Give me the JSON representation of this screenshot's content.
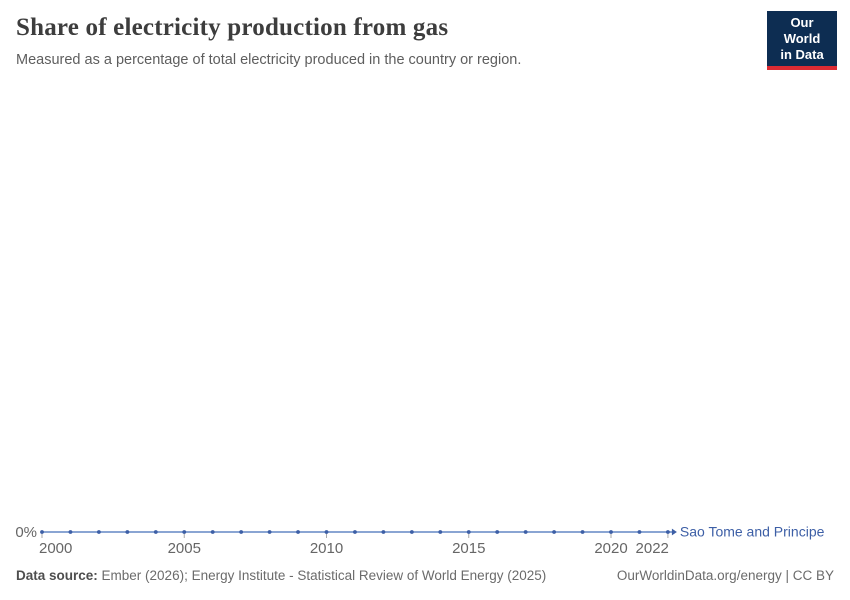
{
  "header": {
    "title": "Share of electricity production from gas",
    "subtitle": "Measured as a percentage of total electricity produced in the country or region.",
    "logo": {
      "line1": "Our World",
      "line2": "in Data",
      "background_color": "#0d2d52",
      "accent_color": "#dc2b33"
    }
  },
  "chart_data": {
    "type": "line",
    "title": "Share of electricity production from gas",
    "x": [
      2000,
      2001,
      2002,
      2003,
      2004,
      2005,
      2006,
      2007,
      2008,
      2009,
      2010,
      2011,
      2012,
      2013,
      2014,
      2015,
      2016,
      2017,
      2018,
      2019,
      2020,
      2021,
      2022
    ],
    "series": [
      {
        "name": "Sao Tome and Principe",
        "values": [
          0,
          0,
          0,
          0,
          0,
          0,
          0,
          0,
          0,
          0,
          0,
          0,
          0,
          0,
          0,
          0,
          0,
          0,
          0,
          0,
          0,
          0,
          0
        ],
        "color": "#3d5fa6",
        "line_color": "#8aa5d3"
      }
    ],
    "x_ticks": [
      2000,
      2005,
      2010,
      2015,
      2020,
      2022
    ],
    "x_tick_labels": [
      "2000",
      "2005",
      "2010",
      "2015",
      "2020",
      "2022"
    ],
    "y_ticks": [
      "0%"
    ],
    "ylim": [
      0,
      0
    ],
    "unit": "%",
    "grid": false,
    "legend_position": "end-of-line-label",
    "tick_color": "#666666"
  },
  "footer": {
    "source_label": "Data source:",
    "source_text": " Ember (2026); Energy Institute - Statistical Review of World Energy (2025)",
    "credit": "OurWorldinData.org/energy | CC BY"
  }
}
